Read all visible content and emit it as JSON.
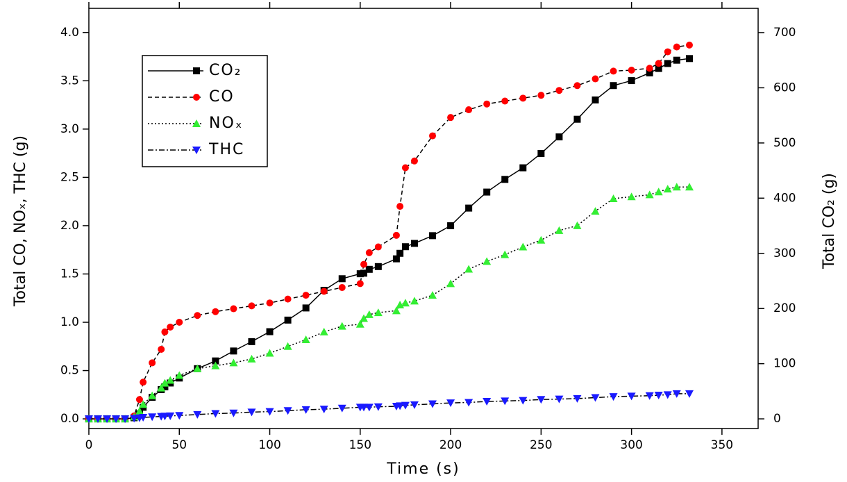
{
  "chart_data": {
    "type": "line",
    "x_label": "Time (s)",
    "y_label": "Total CO, NOₓ, THC (g)",
    "y2_label": "Total CO₂ (g)",
    "x": [
      0,
      5,
      10,
      15,
      20,
      25,
      28,
      30,
      35,
      40,
      42,
      45,
      50,
      60,
      70,
      80,
      90,
      100,
      110,
      120,
      130,
      140,
      150,
      152,
      155,
      160,
      170,
      172,
      175,
      180,
      190,
      200,
      210,
      220,
      230,
      240,
      250,
      260,
      270,
      280,
      290,
      300,
      310,
      315,
      320,
      325,
      332
    ],
    "series": [
      {
        "name": "CO₂",
        "color": "#000000",
        "axis": "y2",
        "line_style": "solid",
        "marker": "square",
        "values": [
          0,
          0,
          0,
          0,
          0,
          2,
          9,
          21,
          39,
          53,
          58,
          65,
          74,
          91,
          105,
          123,
          140,
          158,
          179,
          201,
          233,
          254,
          263,
          264,
          271,
          276,
          290,
          300,
          312,
          318,
          332,
          350,
          382,
          411,
          434,
          455,
          481,
          511,
          543,
          578,
          604,
          613,
          627,
          635,
          644,
          650,
          653
        ]
      },
      {
        "name": "CO",
        "color": "#ff0000",
        "line_style": "dashed",
        "marker": "circle",
        "values": [
          0,
          0,
          0,
          0,
          0,
          0.03,
          0.2,
          0.38,
          0.58,
          0.72,
          0.9,
          0.95,
          1.0,
          1.07,
          1.11,
          1.14,
          1.17,
          1.2,
          1.24,
          1.28,
          1.32,
          1.36,
          1.4,
          1.6,
          1.72,
          1.78,
          1.9,
          2.2,
          2.6,
          2.67,
          2.93,
          3.12,
          3.2,
          3.26,
          3.29,
          3.32,
          3.35,
          3.4,
          3.45,
          3.52,
          3.6,
          3.61,
          3.63,
          3.68,
          3.8,
          3.85,
          3.87
        ]
      },
      {
        "name": "NOₓ",
        "color": "#33ee33",
        "line_style": "dotted",
        "marker": "triangle-up",
        "values": [
          0,
          0,
          0,
          0,
          0,
          0.02,
          0.08,
          0.15,
          0.24,
          0.32,
          0.37,
          0.4,
          0.45,
          0.52,
          0.55,
          0.58,
          0.62,
          0.68,
          0.75,
          0.82,
          0.9,
          0.96,
          0.98,
          1.04,
          1.08,
          1.1,
          1.12,
          1.18,
          1.2,
          1.22,
          1.28,
          1.4,
          1.55,
          1.63,
          1.7,
          1.78,
          1.85,
          1.95,
          2.0,
          2.15,
          2.28,
          2.3,
          2.32,
          2.35,
          2.38,
          2.4,
          2.4
        ]
      },
      {
        "name": "THC",
        "color": "#1a1aff",
        "line_style": "dashdot",
        "marker": "triangle-down",
        "values": [
          0,
          0,
          0,
          0,
          0,
          0.005,
          0.01,
          0.015,
          0.02,
          0.025,
          0.028,
          0.03,
          0.035,
          0.045,
          0.055,
          0.06,
          0.07,
          0.075,
          0.085,
          0.095,
          0.1,
          0.11,
          0.12,
          0.12,
          0.12,
          0.125,
          0.13,
          0.135,
          0.14,
          0.145,
          0.155,
          0.165,
          0.17,
          0.18,
          0.185,
          0.19,
          0.2,
          0.205,
          0.21,
          0.22,
          0.23,
          0.235,
          0.24,
          0.245,
          0.25,
          0.26,
          0.26
        ]
      }
    ],
    "xlim": [
      0,
      370
    ],
    "xticks": [
      0,
      50,
      100,
      150,
      200,
      250,
      300,
      350
    ],
    "ylim": [
      -0.1,
      4.25
    ],
    "yticks": [
      {
        "value": 0,
        "label": "0.0"
      },
      0.5,
      {
        "value": 1,
        "label": "1.0"
      },
      1.5,
      {
        "value": 2,
        "label": "2.0"
      },
      2.5,
      {
        "value": 3,
        "label": "3.0"
      },
      3.5,
      {
        "value": 4,
        "label": "4.0"
      }
    ],
    "y2lim": [
      -17.5,
      744
    ],
    "y2ticks": [
      0,
      100,
      200,
      300,
      400,
      500,
      600,
      700
    ],
    "legend": "upper left",
    "grid": false
  }
}
